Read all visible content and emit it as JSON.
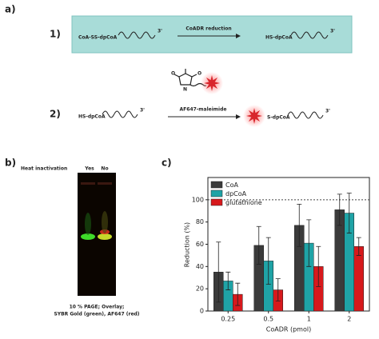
{
  "panel_a": {
    "label": "a)",
    "step1": {
      "label": "1)",
      "reactant": "CoA-SS-dpCoA",
      "reactant_end": "3'",
      "arrow_label": "CoADR reduction",
      "product": "HS-dpCoA",
      "product_end": "3'"
    },
    "step2": {
      "label": "2)",
      "reactant": "HS-dpCoA",
      "reactant_end": "3'",
      "arrow_label": "AF647-maleimide",
      "product": "S-dpCoA",
      "product_end": "3'"
    }
  },
  "panel_b": {
    "label": "b)",
    "header": "Heat inactivation",
    "lanes": [
      "Yes",
      "No"
    ],
    "caption": [
      "10 % PAGE; Overlay;",
      "SYBR Gold (green), AF647 (red)"
    ]
  },
  "panel_c": {
    "label": "c)"
  },
  "chart_data": {
    "type": "bar",
    "xlabel": "CoADR (pmol)",
    "ylabel": "Reduction (%)",
    "categories": [
      "0.25",
      "0.5",
      "1",
      "2"
    ],
    "series": [
      {
        "name": "CoA",
        "color": "#3b3b3b",
        "values": [
          35,
          59,
          77,
          91
        ],
        "errors": [
          27,
          17,
          19,
          14
        ]
      },
      {
        "name": "dpCoA",
        "color": "#1fa3a6",
        "values": [
          27,
          45,
          61,
          88
        ],
        "errors": [
          8,
          21,
          21,
          18
        ]
      },
      {
        "name": "glutathione",
        "color": "#d7191c",
        "values": [
          15,
          19,
          40,
          58
        ],
        "errors": [
          10,
          10,
          18,
          8
        ]
      }
    ],
    "ylim": [
      0,
      120
    ],
    "yticks": [
      0,
      20,
      40,
      60,
      80,
      100
    ],
    "reference_line": 100,
    "legend": "upper left"
  }
}
